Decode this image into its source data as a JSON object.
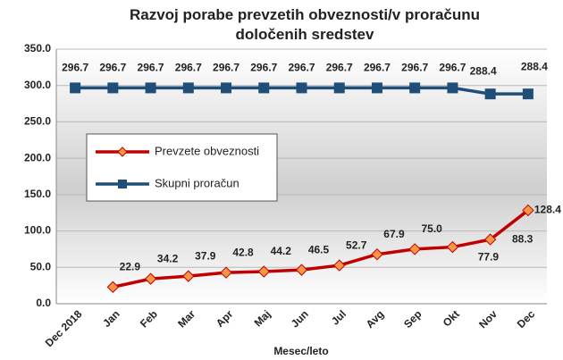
{
  "chart_data": {
    "type": "line",
    "title": "Razvoj porabe prevzetih obveznosti/v proračunu določenih sredstev",
    "x_label": "Mesec/leto",
    "categories": [
      "Dec 2018",
      "Jan",
      "Feb",
      "Mar",
      "Apr",
      "Maj",
      "Jun",
      "Jul",
      "Avg",
      "Sep",
      "Okt",
      "Nov",
      "Dec"
    ],
    "series": [
      {
        "name": "Prevzete obveznosti",
        "color": "#c00000",
        "marker": "diamond",
        "marker_color": "#f79646",
        "values": [
          null,
          22.9,
          34.2,
          37.9,
          42.8,
          44.2,
          46.5,
          52.7,
          67.9,
          75.0,
          77.9,
          88.3,
          128.4
        ],
        "value_labels": [
          null,
          "22.9",
          "34.2",
          "37.9",
          "42.8",
          "44.2",
          "46.5",
          "52.7",
          "67.9",
          "75.0",
          "77.9",
          "88.3",
          "128.4"
        ]
      },
      {
        "name": "Skupni proračun",
        "color": "#1f4e79",
        "marker": "square",
        "marker_color": "#1f4e79",
        "values": [
          296.7,
          296.7,
          296.7,
          296.7,
          296.7,
          296.7,
          296.7,
          296.7,
          296.7,
          296.7,
          296.7,
          288.4,
          288.4
        ]
      }
    ],
    "ylim": [
      0,
      350
    ],
    "yticks": [
      {
        "value": 0,
        "label": "0.0"
      },
      {
        "value": 50,
        "label": "50.0"
      },
      {
        "value": 100,
        "label": "100.0"
      },
      {
        "value": 150,
        "label": "150.0"
      },
      {
        "value": 200,
        "label": "200.0"
      },
      {
        "value": 250,
        "label": "250.0"
      },
      {
        "value": 300,
        "label": "300.0"
      },
      {
        "value": 350,
        "label": "350.0"
      }
    ],
    "grid": true,
    "legend": "left"
  }
}
